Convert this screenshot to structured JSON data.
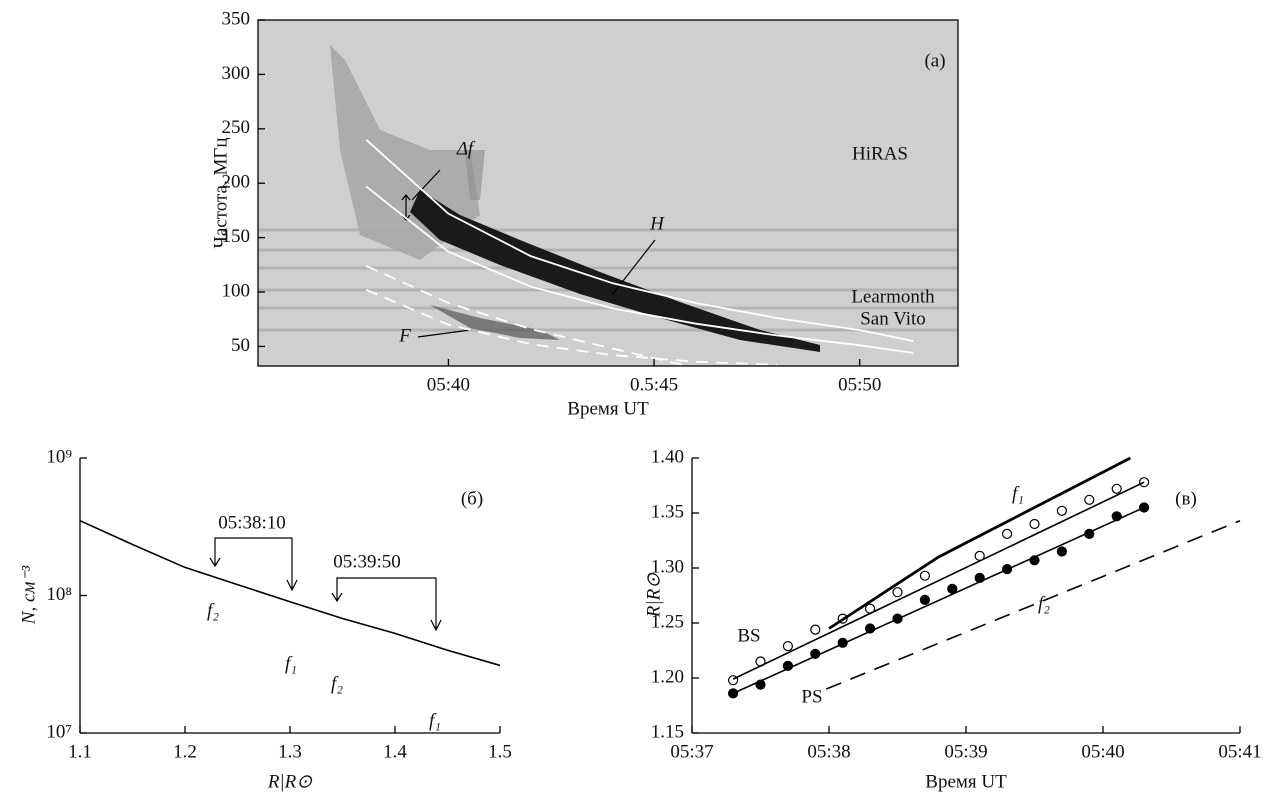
{
  "chart_data": [
    {
      "type": "spectrogram",
      "ylabel": "Частота, МГц",
      "xlabel": "Время UT",
      "xlim": [
        35.37,
        52.39
      ],
      "ylim": [
        32,
        350
      ],
      "xticks": [
        {
          "value": 40,
          "label": "05:40"
        },
        {
          "value": 45,
          "label": "0.5:45"
        },
        {
          "value": 50,
          "label": "05:50"
        }
      ],
      "yticks": [
        50,
        100,
        150,
        200,
        250,
        300,
        350
      ],
      "annotations": [
        "(a)",
        "HiRAS",
        "Learmonth",
        "San Vito",
        "Δf",
        "H",
        "F"
      ],
      "series": [
        {
          "style": "line",
          "color": "#ffffff",
          "x": [
            38,
            40,
            42,
            44,
            46,
            48,
            50,
            51.3
          ],
          "values": [
            240,
            172,
            133,
            108,
            90,
            76,
            65,
            55
          ]
        },
        {
          "style": "line",
          "color": "#ffffff",
          "x": [
            38,
            40,
            42,
            44,
            46,
            48,
            50,
            51.3
          ],
          "values": [
            197,
            137,
            105,
            85,
            71,
            60,
            51,
            44
          ]
        },
        {
          "style": "dashed",
          "color": "#ffffff",
          "x": [
            38,
            40,
            42,
            44,
            45.7
          ],
          "values": [
            124,
            90,
            66,
            48,
            33
          ]
        },
        {
          "style": "dashed",
          "color": "#ffffff",
          "x": [
            38,
            40,
            42,
            44,
            46,
            48
          ],
          "values": [
            102,
            70,
            52,
            42,
            36,
            33
          ]
        }
      ]
    },
    {
      "type": "line",
      "ylabel": "N, см⁻³",
      "xlabel": "R|R⊙",
      "ylog": true,
      "xlim": [
        1.1,
        1.5
      ],
      "ylim": [
        10000000,
        1000000000
      ],
      "xticks": [
        1.1,
        1.2,
        1.3,
        1.4,
        1.5
      ],
      "yticks": [
        {
          "value": 10000000,
          "label": "10⁷"
        },
        {
          "value": 100000000,
          "label": "10⁸"
        },
        {
          "value": 1000000000,
          "label": "10⁹"
        }
      ],
      "annotations": [
        "(б)",
        "05:38:10",
        "05:39:50",
        "f₂",
        "f₁",
        "f₂",
        "f₁"
      ],
      "series": [
        {
          "style": "line",
          "color": "#000000",
          "x": [
            1.1,
            1.15,
            1.2,
            1.25,
            1.3,
            1.35,
            1.4,
            1.45,
            1.5
          ],
          "values": [
            350000000,
            235000000,
            160000000,
            120000000,
            90000000,
            68000000,
            53000000,
            40000000,
            31000000
          ]
        }
      ]
    },
    {
      "type": "scatter",
      "ylabel": "R|R⊙",
      "xlabel": "Время UT",
      "xlim": [
        37,
        41
      ],
      "ylim": [
        1.15,
        1.4
      ],
      "xticks": [
        {
          "value": 37,
          "label": "05:37"
        },
        {
          "value": 38,
          "label": "05:38"
        },
        {
          "value": 39,
          "label": "05:39"
        },
        {
          "value": 40,
          "label": "05:40"
        },
        {
          "value": 41,
          "label": "05:41"
        }
      ],
      "yticks": [
        1.15,
        {
          "value": 1.2,
          "label": "1.20"
        },
        1.25,
        {
          "value": 1.3,
          "label": "1.30"
        },
        1.35,
        {
          "value": 1.4,
          "label": "1.40"
        }
      ],
      "annotations": [
        "(в)"
      ],
      "series": [
        {
          "name": "BS",
          "style": "open",
          "color": "#000000",
          "x": [
            37.3,
            37.5,
            37.7,
            37.9,
            38.1,
            38.3,
            38.5,
            38.7,
            39.1,
            39.3,
            39.5,
            39.7,
            39.9,
            40.1,
            40.3
          ],
          "values": [
            1.198,
            1.215,
            1.229,
            1.244,
            1.254,
            1.263,
            1.278,
            1.293,
            1.311,
            1.331,
            1.34,
            1.352,
            1.362,
            1.372,
            1.378
          ]
        },
        {
          "style": "line",
          "color": "#000000",
          "x": [
            37.3,
            40.3
          ],
          "values": [
            1.199,
            1.378
          ]
        },
        {
          "name": "PS",
          "style": "filled",
          "color": "#000000",
          "x": [
            37.3,
            37.5,
            37.7,
            37.9,
            38.1,
            38.3,
            38.5,
            38.7,
            38.9,
            39.1,
            39.3,
            39.5,
            39.7,
            39.9,
            40.1,
            40.3
          ],
          "values": [
            1.186,
            1.194,
            1.211,
            1.222,
            1.232,
            1.245,
            1.254,
            1.271,
            1.281,
            1.291,
            1.299,
            1.307,
            1.315,
            1.331,
            1.347,
            1.355
          ]
        },
        {
          "style": "line",
          "color": "#000000",
          "x": [
            37.3,
            40.3
          ],
          "values": [
            1.186,
            1.355
          ]
        },
        {
          "name": "f₁",
          "style": "thick",
          "color": "#000000",
          "x": [
            38,
            38.8,
            39.5,
            40.2
          ],
          "values": [
            1.245,
            1.31,
            1.355,
            1.4
          ]
        },
        {
          "name": "f₂",
          "style": "dashed",
          "color": "#000000",
          "x": [
            37.98,
            41
          ],
          "values": [
            1.19,
            1.343
          ]
        }
      ]
    }
  ]
}
